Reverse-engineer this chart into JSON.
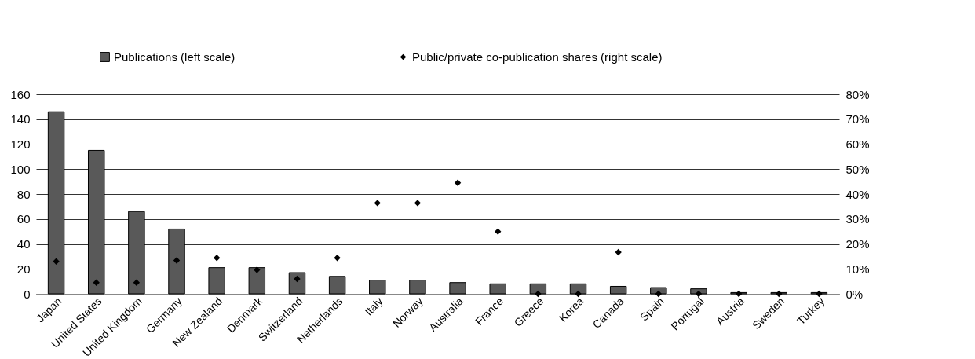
{
  "chart_data": {
    "type": "bar",
    "categories": [
      "Japan",
      "United States",
      "United Kingdom",
      "Germany",
      "New Zealand",
      "Denmark",
      "Switzerland",
      "Netherlands",
      "Italy",
      "Norway",
      "Australia",
      "France",
      "Greece",
      "Korea",
      "Canada",
      "Spain",
      "Portugal",
      "Austria",
      "Sweden",
      "Turkey"
    ],
    "series": [
      {
        "name": "Publications (left scale)",
        "color": "#595959",
        "values": [
          146,
          115,
          66,
          52,
          21,
          21,
          17,
          14,
          11,
          11,
          9,
          8,
          8,
          8,
          6,
          5,
          4,
          1,
          1,
          1
        ]
      },
      {
        "name": "Public/private co-publication shares (right scale)",
        "type": "scatter",
        "axis": "y2",
        "color": "#000000",
        "values": [
          13,
          4.5,
          4.5,
          13.4,
          14.4,
          9.6,
          6,
          14.4,
          36.4,
          36.4,
          44.5,
          25,
          0,
          0,
          16.7,
          0,
          0,
          0,
          0,
          0
        ]
      }
    ],
    "ylim": [
      0,
      160
    ],
    "yticks": [
      0,
      20,
      40,
      60,
      80,
      100,
      120,
      140,
      160
    ],
    "y2lim": [
      0,
      80
    ],
    "y2ticks": [
      {
        "value": 0,
        "label": "0%"
      },
      {
        "value": 10,
        "label": "10%"
      },
      {
        "value": 20,
        "label": "20%"
      },
      {
        "value": 30,
        "label": "30%"
      },
      {
        "value": 40,
        "label": "40%"
      },
      {
        "value": 50,
        "label": "50%"
      },
      {
        "value": 60,
        "label": "60%"
      },
      {
        "value": 70,
        "label": "70%"
      },
      {
        "value": 80,
        "label": "80%"
      }
    ],
    "grid": "y",
    "legend": "top",
    "marker": "diamond"
  }
}
